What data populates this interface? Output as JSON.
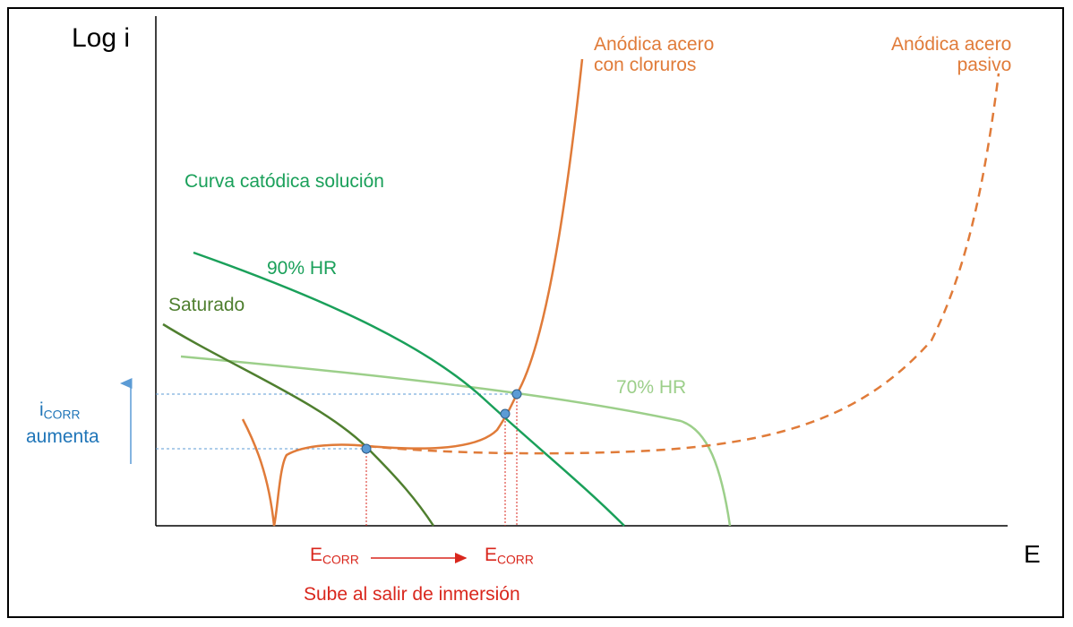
{
  "axis": {
    "y_label": "Log i",
    "x_label": "E"
  },
  "curves": {
    "anodic_chlorides": {
      "label": "Anódica acero\ncon cloruros",
      "color": "#e07b39"
    },
    "anodic_passive": {
      "label": "Anódica acero\npasivo",
      "color": "#e07b39"
    },
    "cathodic_title": {
      "label": "Curva catódica solución",
      "color": "#1aa05a"
    },
    "hr90": {
      "label": "90% HR",
      "color": "#1aa05a"
    },
    "saturated": {
      "label": "Saturado",
      "color": "#4f7f2f"
    },
    "hr70": {
      "label": "70% HR",
      "color": "#9ccf8a"
    }
  },
  "annotations": {
    "icorr_main": "i",
    "icorr_sub": "CORR",
    "icorr_text": "aumenta",
    "ecorr_main": "E",
    "ecorr_sub": "CORR",
    "ecorr2_main": "E",
    "ecorr2_sub": "CORR",
    "rise_text": "Sube al salir de inmersión"
  },
  "colors": {
    "blue": "#1f75b8",
    "red": "#d9271d",
    "orange": "#e07b39"
  }
}
